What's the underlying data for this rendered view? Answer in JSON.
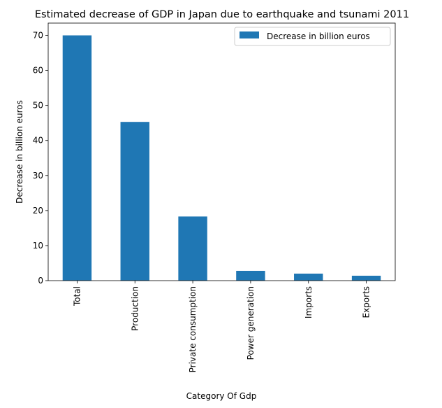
{
  "chart_data": {
    "type": "bar",
    "title": "Estimated decrease of GDP in Japan due to earthquake and tsunami 2011",
    "xlabel": "Category Of Gdp",
    "ylabel": "Decrease in billion euros",
    "categories": [
      "Total",
      "Production",
      "Private consumption",
      "Power generation",
      "Imports",
      "Exports"
    ],
    "series": [
      {
        "name": "Decrease in billion euros",
        "values": [
          70,
          45.3,
          18.3,
          2.8,
          2.0,
          1.4
        ]
      }
    ],
    "ylim": [
      0,
      73.5
    ],
    "yticks": [
      0,
      10,
      20,
      30,
      40,
      50,
      60,
      70
    ],
    "grid": false,
    "legend_position": "top-right",
    "colors": {
      "bar": "#1f77b4"
    }
  }
}
